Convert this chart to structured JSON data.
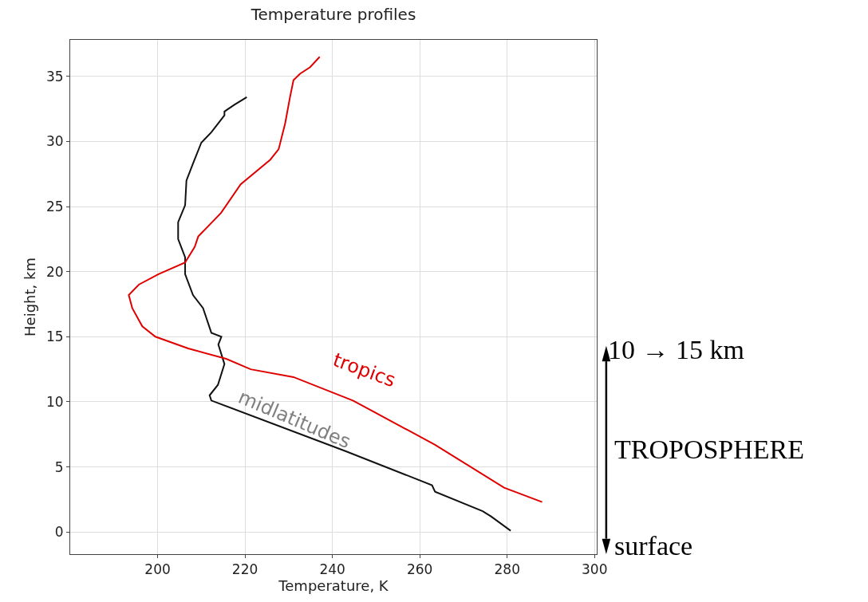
{
  "chart_data": {
    "type": "line",
    "title": "Temperature profiles",
    "xlabel": "Temperature, K",
    "ylabel": "Height, km",
    "xlim": [
      180,
      300.5
    ],
    "ylim": [
      -1.7,
      37.8
    ],
    "xticks": [
      200,
      220,
      240,
      260,
      280,
      300
    ],
    "yticks": [
      0,
      5,
      10,
      15,
      20,
      25,
      30,
      35
    ],
    "grid": true,
    "series": [
      {
        "color": "#111111",
        "x": [
          280.8,
          276.3,
          274.4,
          263.5,
          262.8,
          243.1,
          212.3,
          211.9,
          213.8,
          215.3,
          213.9,
          214.6,
          212.3,
          210.4,
          208.1,
          206.3,
          206.3,
          204.7,
          204.7,
          206.3,
          206.6,
          208.1,
          210.0,
          212.3,
          215.3,
          215.3,
          217.5,
          220.4
        ],
        "values": [
          0.1,
          1.2,
          1.6,
          3.1,
          3.6,
          6.2,
          10.1,
          10.5,
          11.3,
          12.9,
          14.4,
          15.0,
          15.3,
          17.2,
          18.2,
          19.8,
          21.1,
          22.5,
          23.8,
          25.1,
          27.0,
          28.3,
          29.9,
          30.7,
          32.0,
          32.3,
          32.8,
          33.4
        ]
      },
      {
        "color": "#e00000",
        "x": [
          288.0,
          279.3,
          263.5,
          244.7,
          231.1,
          221.3,
          215.7,
          207.0,
          199.5,
          196.5,
          194.2,
          193.4,
          195.7,
          200.2,
          206.3,
          208.5,
          209.3,
          214.5,
          219.0,
          225.8,
          227.7,
          229.2,
          230.3,
          231.1,
          232.6,
          234.9,
          237.1
        ],
        "values": [
          2.3,
          3.4,
          6.7,
          10.1,
          11.9,
          12.5,
          13.3,
          14.1,
          15.0,
          15.8,
          17.2,
          18.2,
          19.0,
          19.8,
          20.7,
          21.9,
          22.7,
          24.5,
          26.7,
          28.6,
          29.4,
          31.4,
          33.4,
          34.7,
          35.2,
          35.7,
          36.5
        ]
      }
    ],
    "annotations": [
      "tropics",
      "midlatitudes",
      "10 → 15 km",
      "TROPOSPHERE",
      "surface"
    ]
  }
}
